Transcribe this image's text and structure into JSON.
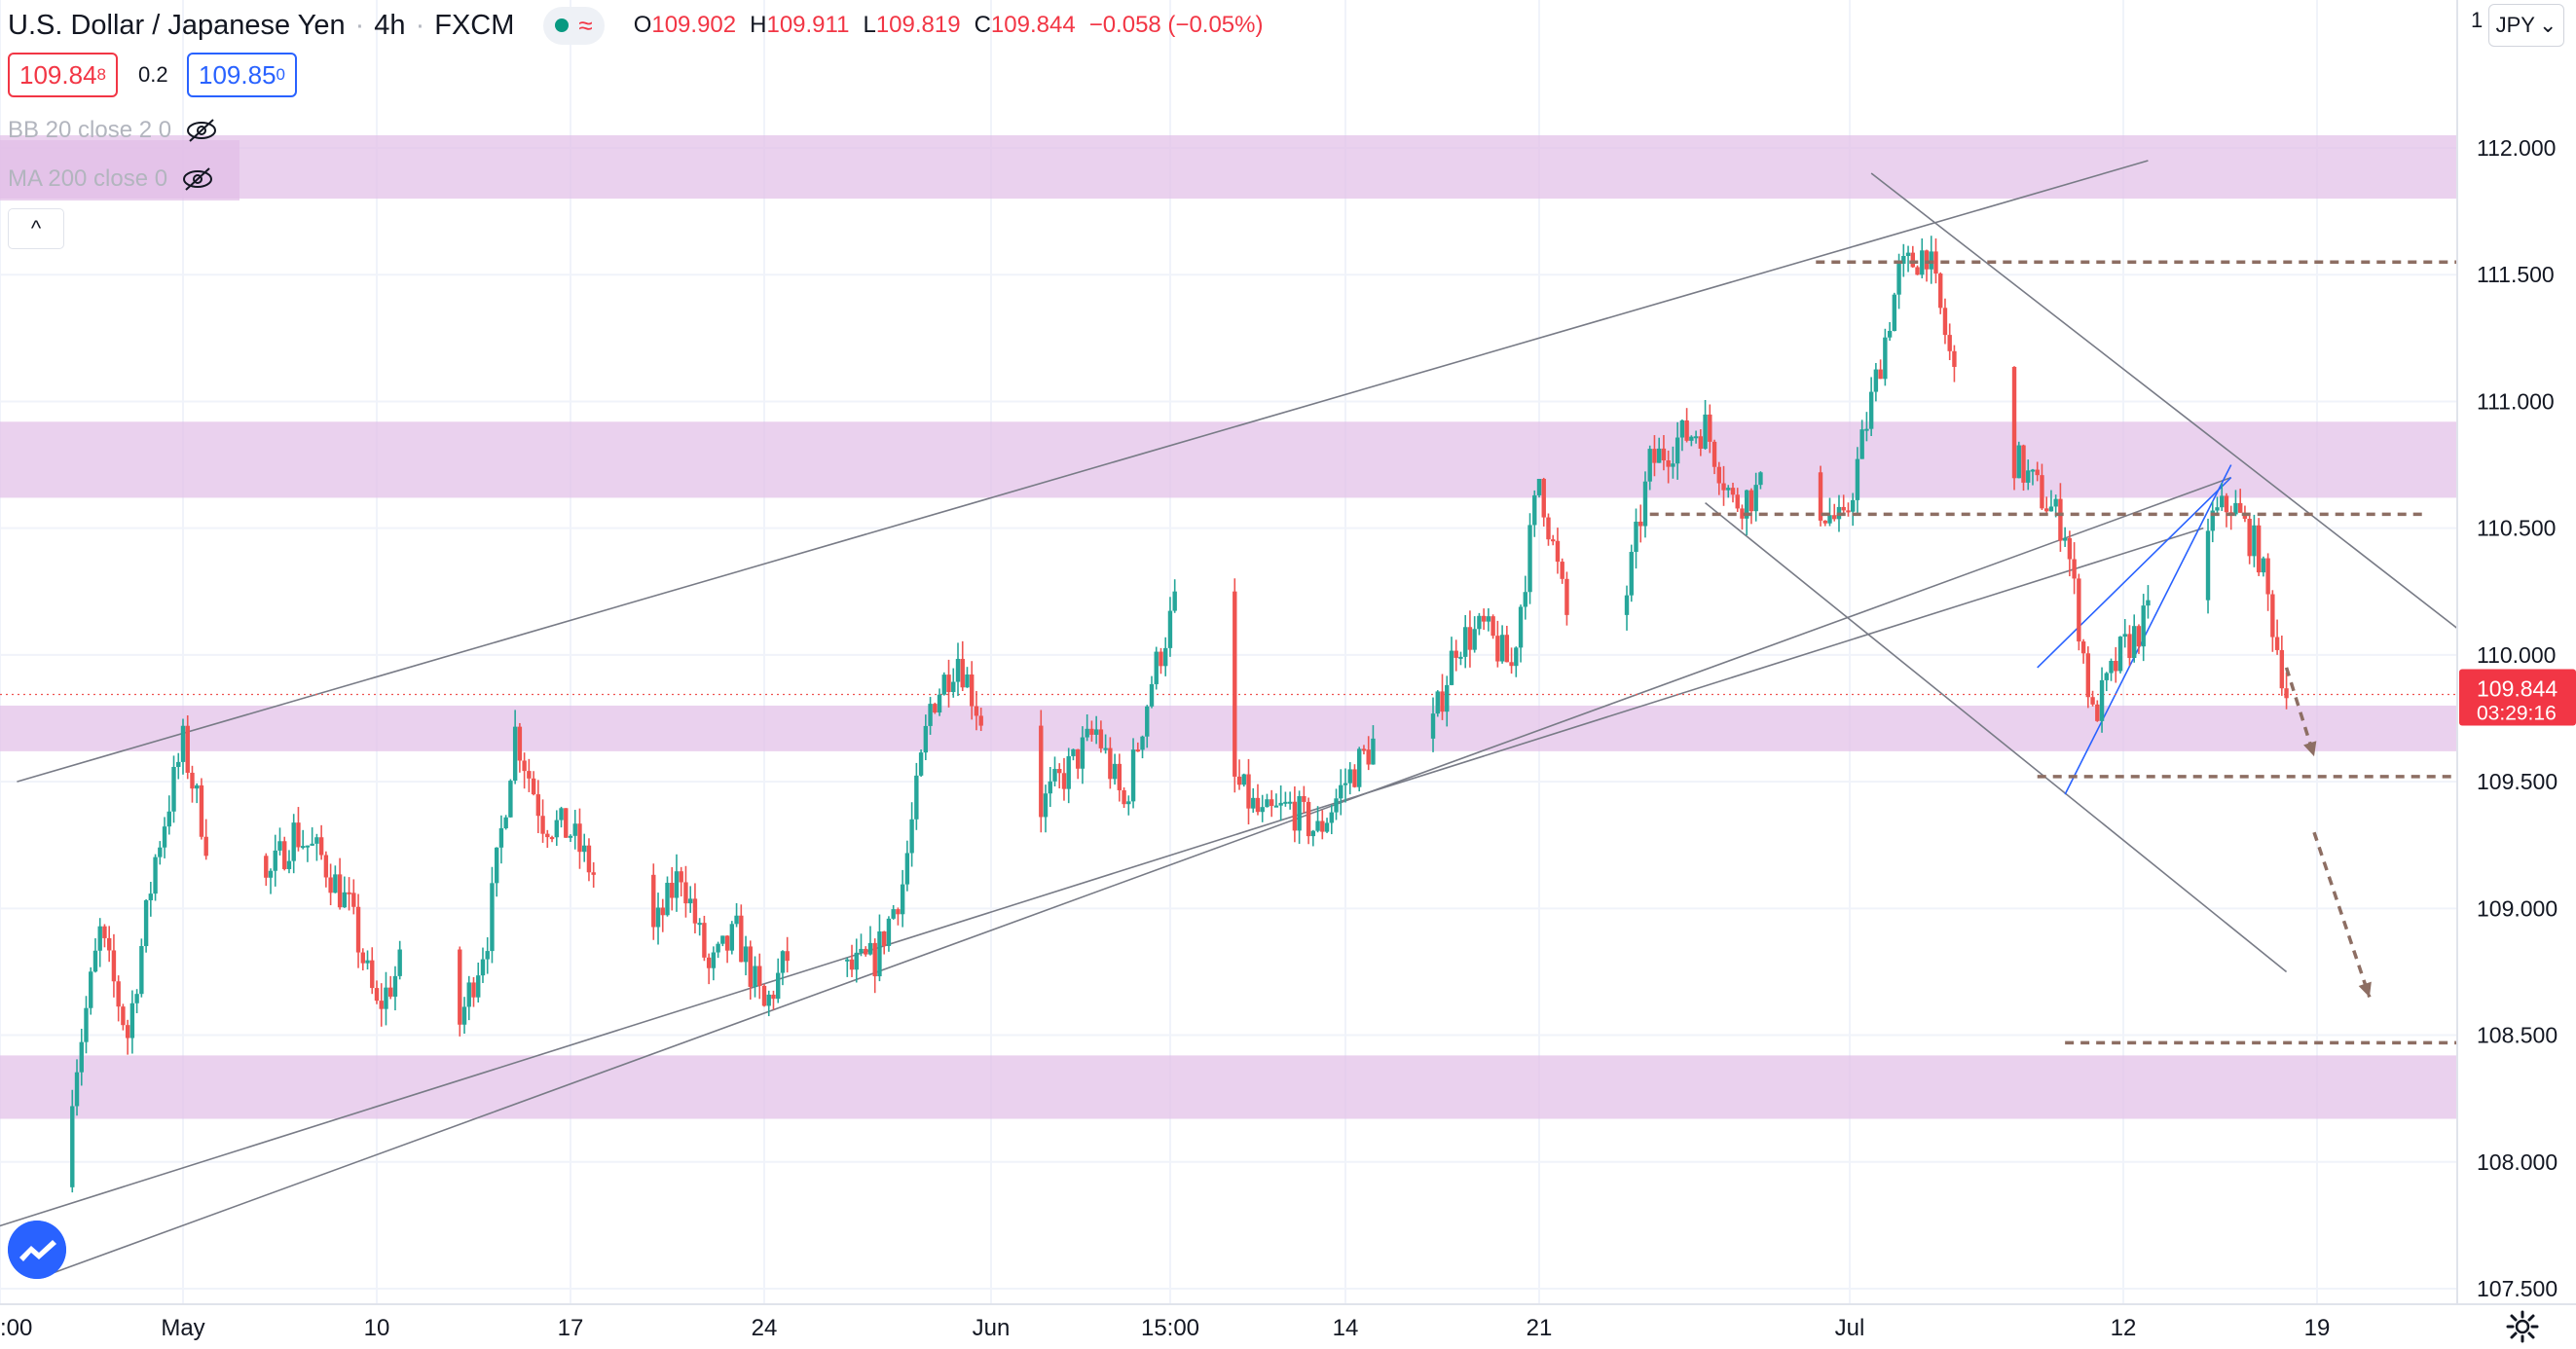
{
  "header": {
    "symbol": "U.S. Dollar / Japanese Yen",
    "interval": "4h",
    "exchange": "FXCM",
    "ohlc": {
      "o_label": "O",
      "o": "109.902",
      "h_label": "H",
      "h": "109.911",
      "l_label": "L",
      "l": "109.819",
      "c_label": "C",
      "c": "109.844",
      "change": "−0.058 (−0.05%)"
    }
  },
  "quote": {
    "sell_main": "109.84",
    "sell_sup": "8",
    "spread": "0.2",
    "buy_main": "109.85",
    "buy_sup": "0"
  },
  "indicators": [
    {
      "label": "BB 20 close 2 0"
    },
    {
      "label": "MA 200 close 0"
    }
  ],
  "currency_button": {
    "label": "JPY"
  },
  "scale_label": "1",
  "price_tag": {
    "price": "109.844",
    "countdown": "03:29:16",
    "color": "#f23645"
  },
  "colors": {
    "up": "#26a69a",
    "down": "#ef5350",
    "zone": "#e1bee7",
    "trendline": "#787b86",
    "channel": "#2962ff",
    "level": "#8d6e63"
  },
  "icons": {
    "collapse": "chevron-up-icon",
    "visibility": "eye-crossed-icon",
    "logo": "tradingview-logo-icon",
    "settings": "gear-icon"
  },
  "chart_data": {
    "type": "candlestick",
    "title": "U.S. Dollar / Japanese Yen, 4h, FXCM",
    "xlabel": "",
    "ylabel": "",
    "ylim": [
      107.5,
      112.2
    ],
    "y_ticks": [
      "112.000",
      "111.500",
      "111.000",
      "110.500",
      "110.000",
      "109.500",
      "109.000",
      "108.500",
      "108.000",
      "107.500"
    ],
    "x_ticks": [
      ":00",
      "May",
      "10",
      "17",
      "24",
      "Jun",
      "15:00",
      "14",
      "21",
      "Jul",
      "12",
      "19"
    ],
    "last_price": 109.844,
    "path_points": [
      [
        "Apr 26",
        107.9
      ],
      [
        "Apr 27",
        108.3
      ],
      [
        "Apr 28",
        108.9
      ],
      [
        "Apr 29",
        108.5
      ],
      [
        "Apr 30",
        109.2
      ],
      [
        "May 1",
        109.65
      ],
      [
        "May 2",
        109.2
      ],
      [
        "May 3",
        109.35
      ],
      [
        "May 4",
        109.1
      ],
      [
        "May 5",
        109.3
      ],
      [
        "May 6",
        109.2
      ],
      [
        "May 7",
        109.0
      ],
      [
        "May 8",
        108.6
      ],
      [
        "May 9",
        108.8
      ],
      [
        "May 10",
        108.9
      ],
      [
        "May 11",
        108.55
      ],
      [
        "May 12",
        108.9
      ],
      [
        "May 13",
        109.7
      ],
      [
        "May 14",
        109.35
      ],
      [
        "May 15",
        109.3
      ],
      [
        "May 16",
        109.1
      ],
      [
        "May 17",
        109.15
      ],
      [
        "May 18",
        108.9
      ],
      [
        "May 19",
        109.15
      ],
      [
        "May 20",
        108.75
      ],
      [
        "May 21",
        108.9
      ],
      [
        "May 22",
        108.6
      ],
      [
        "May 23",
        108.85
      ],
      [
        "May 24",
        108.9
      ],
      [
        "May 25",
        108.75
      ],
      [
        "May 26",
        108.8
      ],
      [
        "May 27",
        109.1
      ],
      [
        "May 28",
        109.8
      ],
      [
        "May 29",
        110.0
      ],
      [
        "May 30",
        109.7
      ],
      [
        "May 31",
        109.55
      ],
      [
        "Jun 1",
        109.4
      ],
      [
        "Jun 2",
        109.55
      ],
      [
        "Jun 3",
        109.7
      ],
      [
        "Jun 4",
        109.4
      ],
      [
        "Jun 5",
        109.9
      ],
      [
        "Jun 6",
        110.25
      ],
      [
        "Jun 7",
        109.7
      ],
      [
        "Jun 8",
        109.5
      ],
      [
        "Jun 9",
        109.35
      ],
      [
        "Jun 10",
        109.4
      ],
      [
        "Jun 11",
        109.3
      ],
      [
        "Jun 12",
        109.5
      ],
      [
        "Jun 13",
        109.65
      ],
      [
        "Jun 14",
        109.45
      ],
      [
        "Jun 15",
        109.65
      ],
      [
        "Jun 16",
        110.05
      ],
      [
        "Jun 17",
        110.1
      ],
      [
        "Jun 18",
        109.95
      ],
      [
        "Jun 19",
        110.7
      ],
      [
        "Jun 20",
        110.15
      ],
      [
        "Jun 21",
        109.85
      ],
      [
        "Jun 22",
        110.15
      ],
      [
        "Jun 23",
        110.75
      ],
      [
        "Jun 24",
        110.85
      ],
      [
        "Jun 25",
        110.9
      ],
      [
        "Jun 26",
        110.6
      ],
      [
        "Jun 27",
        110.65
      ],
      [
        "Jun 28",
        110.5
      ],
      [
        "Jun 29",
        110.6
      ],
      [
        "Jun 30",
        110.5
      ],
      [
        "Jul 1",
        111.0
      ],
      [
        "Jul 2",
        111.5
      ],
      [
        "Jul 3",
        111.6
      ],
      [
        "Jul 4",
        111.1
      ],
      [
        "Jul 5",
        110.9
      ],
      [
        "Jul 6",
        110.8
      ],
      [
        "Jul 7",
        110.65
      ],
      [
        "Jul 8",
        110.5
      ],
      [
        "Jul 9",
        109.75
      ],
      [
        "Jul 10",
        110.0
      ],
      [
        "Jul 11",
        110.15
      ],
      [
        "Jul 12",
        110.25
      ],
      [
        "Jul 13",
        110.5
      ],
      [
        "Jul 14",
        110.6
      ],
      [
        "Jul 15",
        110.4
      ],
      [
        "Jul 16",
        109.85
      ]
    ],
    "zones": [
      {
        "from": 111.8,
        "to": 112.05
      },
      {
        "from": 110.62,
        "to": 110.92
      },
      {
        "from": 109.62,
        "to": 109.8
      },
      {
        "from": 108.17,
        "to": 108.42
      }
    ],
    "levels": [
      {
        "price": 111.55,
        "from": "Jun 29",
        "to": "Jul 26"
      },
      {
        "price": 110.555,
        "from": "Jun 23",
        "to": "Jul 21"
      },
      {
        "price": 109.52,
        "from": "Jul 7",
        "to": "Jul 26"
      },
      {
        "price": 108.47,
        "from": "Jul 8",
        "to": "Jul 28"
      }
    ],
    "trendlines": [
      {
        "from": [
          "Apr 25",
          109.5
        ],
        "to": [
          "Jul 11",
          111.95
        ]
      },
      {
        "from": [
          "Apr 26",
          107.55
        ],
        "to": [
          "Jul 14",
          110.7
        ]
      },
      {
        "from": [
          "Apr 23",
          107.7
        ],
        "to": [
          "Jul 13",
          110.5
        ]
      },
      {
        "from": [
          "Jul 1",
          111.9
        ],
        "to": [
          "Jul 24",
          109.95
        ]
      },
      {
        "from": [
          "Jun 25",
          110.6
        ],
        "to": [
          "Jul 16",
          108.75
        ]
      }
    ],
    "channel": [
      {
        "from": [
          "Jul 8",
          109.45
        ],
        "to": [
          "Jul 14",
          110.75
        ]
      },
      {
        "from": [
          "Jul 7",
          109.95
        ],
        "to": [
          "Jul 14",
          110.7
        ]
      }
    ],
    "projection_arrows": [
      {
        "from": [
          "Jul 16",
          109.95
        ],
        "to": [
          "Jul 17",
          109.6
        ]
      },
      {
        "from": [
          "Jul 17",
          109.3
        ],
        "to": [
          "Jul 19",
          108.65
        ]
      }
    ]
  }
}
